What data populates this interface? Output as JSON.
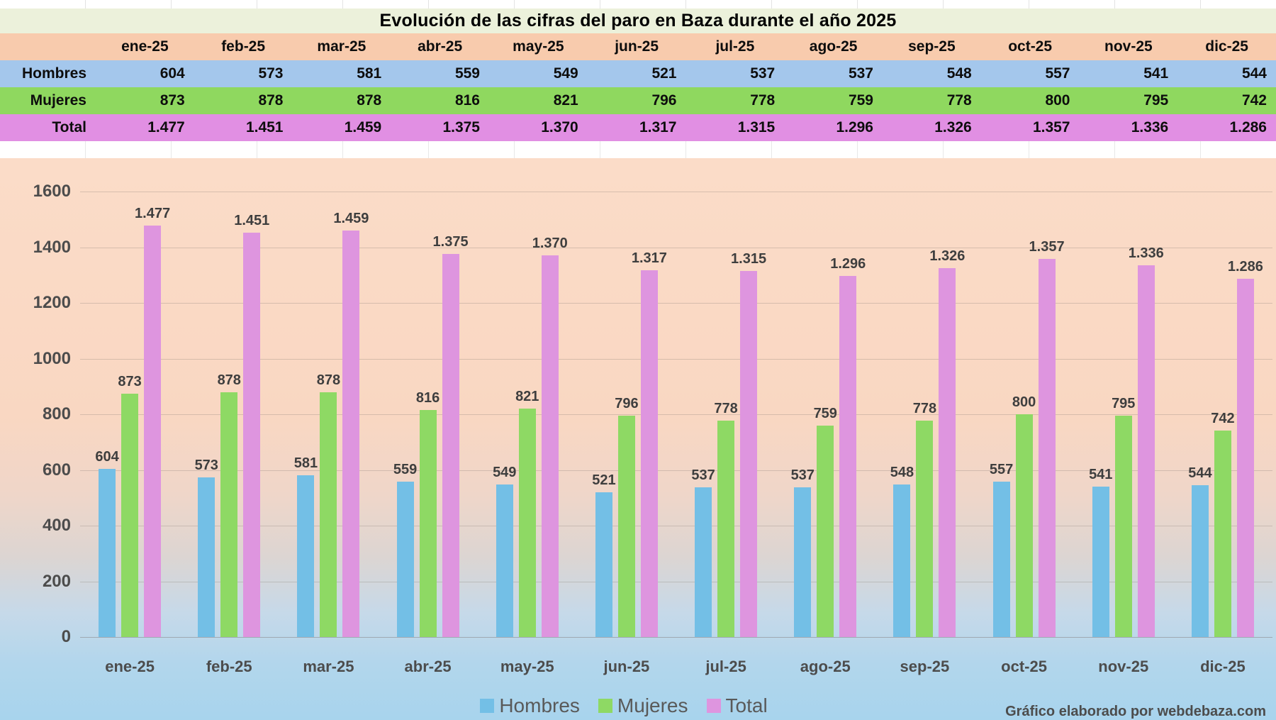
{
  "title": "Evolución de las cifras del paro en Baza durante el año 2025",
  "attribution": "Gráfico elaborado por webdebaza.com",
  "table": {
    "corner_label": "",
    "months": [
      "ene-25",
      "feb-25",
      "mar-25",
      "abr-25",
      "may-25",
      "jun-25",
      "jul-25",
      "ago-25",
      "sep-25",
      "oct-25",
      "nov-25",
      "dic-25"
    ],
    "rows": [
      {
        "label": "Hombres",
        "color": "#A4C7EC",
        "values": [
          "604",
          "573",
          "581",
          "559",
          "549",
          "521",
          "537",
          "537",
          "548",
          "557",
          "541",
          "544"
        ]
      },
      {
        "label": "Mujeres",
        "color": "#8FD85F",
        "values": [
          "873",
          "878",
          "878",
          "816",
          "821",
          "796",
          "778",
          "759",
          "778",
          "800",
          "795",
          "742"
        ]
      },
      {
        "label": "Total",
        "color": "#E18FE3",
        "values": [
          "1.477",
          "1.451",
          "1.459",
          "1.375",
          "1.370",
          "1.317",
          "1.315",
          "1.296",
          "1.326",
          "1.357",
          "1.336",
          "1.286"
        ]
      }
    ],
    "header_color": "#F8CBAD",
    "title_band_color": "#ECF1DB"
  },
  "legend": [
    {
      "label": "Hombres",
      "color": "#73BFE6"
    },
    {
      "label": "Mujeres",
      "color": "#8ED964"
    },
    {
      "label": "Total",
      "color": "#DE95DF"
    }
  ],
  "chart_data": {
    "type": "bar",
    "title": "Evolución de las cifras del paro en Baza durante el año 2025",
    "categories": [
      "ene-25",
      "feb-25",
      "mar-25",
      "abr-25",
      "may-25",
      "jun-25",
      "jul-25",
      "ago-25",
      "sep-25",
      "oct-25",
      "nov-25",
      "dic-25"
    ],
    "series": [
      {
        "name": "Hombres",
        "color": "#73BFE6",
        "values": [
          604,
          573,
          581,
          559,
          549,
          521,
          537,
          537,
          548,
          557,
          541,
          544
        ],
        "labels": [
          "604",
          "573",
          "581",
          "559",
          "549",
          "521",
          "537",
          "537",
          "548",
          "557",
          "541",
          "544"
        ]
      },
      {
        "name": "Mujeres",
        "color": "#8ED964",
        "values": [
          873,
          878,
          878,
          816,
          821,
          796,
          778,
          759,
          778,
          800,
          795,
          742
        ],
        "labels": [
          "873",
          "878",
          "878",
          "816",
          "821",
          "796",
          "778",
          "759",
          "778",
          "800",
          "795",
          "742"
        ]
      },
      {
        "name": "Total",
        "color": "#DE95DF",
        "values": [
          1477,
          1451,
          1459,
          1375,
          1370,
          1317,
          1315,
          1296,
          1326,
          1357,
          1336,
          1286
        ],
        "labels": [
          "1.477",
          "1.451",
          "1.459",
          "1.375",
          "1.370",
          "1.317",
          "1.315",
          "1.296",
          "1.326",
          "1.357",
          "1.336",
          "1.286"
        ]
      }
    ],
    "xlabel": "",
    "ylabel": "",
    "ylim": [
      0,
      1600
    ],
    "ytick_step": 200,
    "yticks": [
      0,
      200,
      400,
      600,
      800,
      1000,
      1200,
      1400,
      1600
    ],
    "grid": true,
    "legend_position": "bottom",
    "data_labels_visible": true
  }
}
